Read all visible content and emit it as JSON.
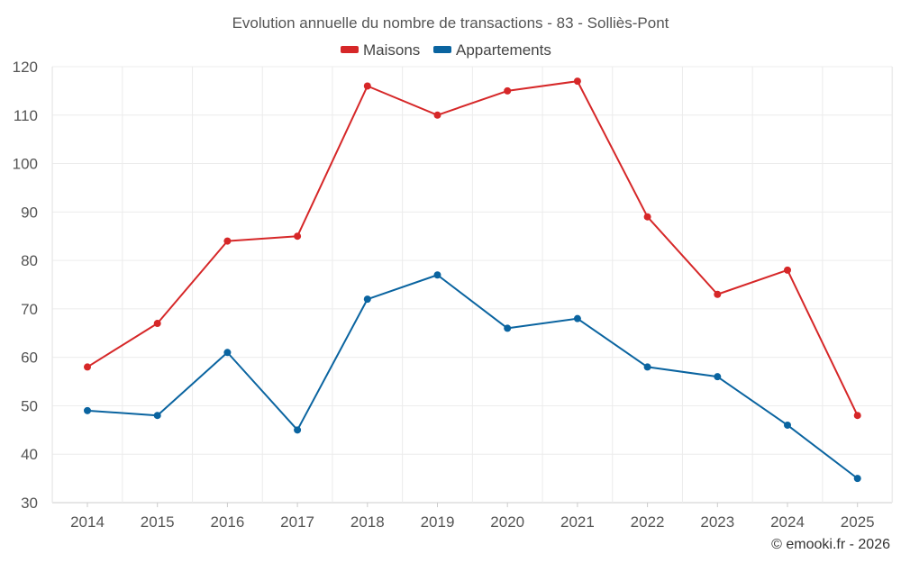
{
  "chart_data": {
    "type": "line",
    "title": "Evolution annuelle du nombre de transactions - 83 - Solliès-Pont",
    "categories": [
      "2014",
      "2015",
      "2016",
      "2017",
      "2018",
      "2019",
      "2020",
      "2021",
      "2022",
      "2023",
      "2024",
      "2025"
    ],
    "series": [
      {
        "name": "Maisons",
        "color": "#d62728",
        "values": [
          58,
          67,
          84,
          85,
          116,
          110,
          115,
          117,
          89,
          73,
          78,
          48
        ]
      },
      {
        "name": "Appartements",
        "color": "#0a64a0",
        "values": [
          49,
          48,
          61,
          45,
          72,
          77,
          66,
          68,
          58,
          56,
          46,
          35
        ]
      }
    ],
    "ylim": [
      30,
      120
    ],
    "yticks": [
      30,
      40,
      50,
      60,
      70,
      80,
      90,
      100,
      110,
      120
    ],
    "xlabel": "",
    "ylabel": "",
    "grid": true,
    "legend_position": "top-center"
  },
  "credit": "© emooki.fr - 2026"
}
